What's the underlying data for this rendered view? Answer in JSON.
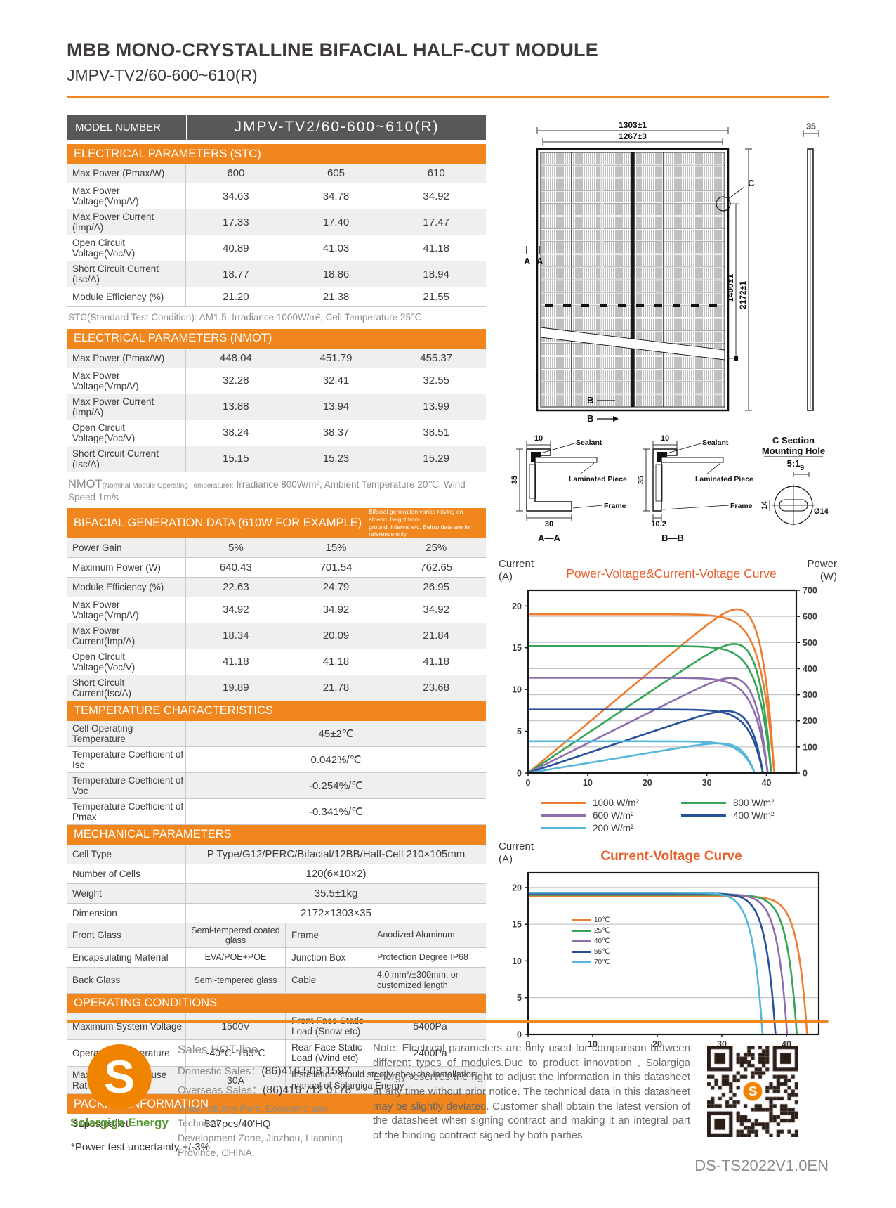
{
  "colors": {
    "accent_orange": "#F0861D",
    "model_bar_gray": "#595757",
    "chart_title_orange": "#E8602C",
    "logo_orange": "#F08300",
    "logo_green": "#569A31"
  },
  "header": {
    "title_line1": "MBB MONO-CRYSTALLINE BIFACIAL HALF-CUT MODULE",
    "title_line2": "JMPV-TV2/60-600~610(R)"
  },
  "model": {
    "label": "MODEL NUMBER",
    "value": "JMPV-TV2/60-600~610(R)"
  },
  "stc": {
    "title": "ELECTRICAL PARAMETERS  (STC)",
    "rows": [
      {
        "label": "Max Power (Pmax/W)",
        "values": [
          "600",
          "605",
          "610"
        ]
      },
      {
        "label": "Max Power Voltage(Vmp/V)",
        "values": [
          "34.63",
          "34.78",
          "34.92"
        ]
      },
      {
        "label": "Max Power Current (Imp/A)",
        "values": [
          "17.33",
          "17.40",
          "17.47"
        ]
      },
      {
        "label": "Open Circuit Voltage(Voc/V)",
        "values": [
          "40.89",
          "41.03",
          "41.18"
        ]
      },
      {
        "label": "Short Circuit Current (Isc/A)",
        "values": [
          "18.77",
          "18.86",
          "18.94"
        ]
      },
      {
        "label": "Module Efficiency (%)",
        "values": [
          "21.20",
          "21.38",
          "21.55"
        ]
      }
    ],
    "footnote": "STC(Standard Test Condition): AM1.5, Irradiance 1000W/m², Cell Temperature 25℃"
  },
  "nmot": {
    "title": "ELECTRICAL PARAMETERS  (NMOT)",
    "rows": [
      {
        "label": "Max Power (Pmax/W)",
        "values": [
          "448.04",
          "451.79",
          "455.37"
        ]
      },
      {
        "label": "Max Power Voltage(Vmp/V)",
        "values": [
          "32.28",
          "32.41",
          "32.55"
        ]
      },
      {
        "label": "Max Power Current (Imp/A)",
        "values": [
          "13.88",
          "13.94",
          "13.99"
        ]
      },
      {
        "label": "Open Circuit Voltage(Voc/V)",
        "values": [
          "38.24",
          "38.37",
          "38.51"
        ]
      },
      {
        "label": "Short Circuit Current (Isc/A)",
        "values": [
          "15.15",
          "15.23",
          "15.29"
        ]
      }
    ],
    "footnote_big": "NMOT",
    "footnote_small": "(Nominal Module Operating Temperature):",
    "footnote_rest": " Irradiance 800W/m², Ambient Temperature 20℃, Wind Speed 1m/s"
  },
  "bifacial": {
    "title": "BIFACIAL GENERATION DATA (610W FOR EXAMPLE)",
    "note1": "Bifacial generation varies relying on albedo, height from",
    "note2": "ground, interval etc. Below data are for reference only.",
    "rows": [
      {
        "label": "Power Gain",
        "values": [
          "5%",
          "15%",
          "25%"
        ]
      },
      {
        "label": "Maximum Power (W)",
        "values": [
          "640.43",
          "701.54",
          "762.65"
        ]
      },
      {
        "label": "Module Efficiency (%)",
        "values": [
          "22.63",
          "24.79",
          "26.95"
        ]
      },
      {
        "label": "Max Power Voltage(Vmp/V)",
        "values": [
          "34.92",
          "34.92",
          "34.92"
        ]
      },
      {
        "label": "Max Power Current(Imp/A)",
        "values": [
          "18.34",
          "20.09",
          "21.84"
        ]
      },
      {
        "label": "Open Circuit Voltage(Voc/V)",
        "values": [
          "41.18",
          "41.18",
          "41.18"
        ]
      },
      {
        "label": "Short Circuit Current(Isc/A)",
        "values": [
          "19.89",
          "21.78",
          "23.68"
        ]
      }
    ]
  },
  "temperature": {
    "title": "TEMPERATURE CHARACTERISTICS",
    "rows": [
      {
        "label": "Cell Operating Temperature",
        "values": [
          "45±2℃"
        ]
      },
      {
        "label": "Temperature Coefficient of Isc",
        "values": [
          "0.042%/℃"
        ]
      },
      {
        "label": "Temperature Coefficient of Voc",
        "values": [
          "-0.254%/℃"
        ]
      },
      {
        "label": "Temperature Coefficient of Pmax",
        "values": [
          "-0.341%/℃"
        ]
      }
    ]
  },
  "mechanical": {
    "title": "MECHANICAL PARAMETERS",
    "full_rows": [
      {
        "label": "Cell Type",
        "values": [
          "P Type/G12/PERC/Bifacial/12BB/Half-Cell 210×105mm"
        ]
      },
      {
        "label": "Number of Cells",
        "values": [
          "120(6×10×2)"
        ]
      },
      {
        "label": "Weight",
        "values": [
          "35.5±1kg"
        ]
      },
      {
        "label": "Dimension",
        "values": [
          "2172×1303×35"
        ]
      }
    ],
    "split_rows": [
      {
        "label1": "Front Glass",
        "value1": "Semi-tempered coated glass",
        "label2": "Frame",
        "value2": "Anodized Aluminum"
      },
      {
        "label1": "Encapsulating Material",
        "value1": "EVA/POE+POE",
        "label2": "Junction Box",
        "value2": "Protection Degree IP68"
      },
      {
        "label1": "Back Glass",
        "value1": "Semi-tempered glass",
        "label2": "Cable",
        "value2": "4.0 mm²/±300mm; or customized length"
      }
    ]
  },
  "operating": {
    "title": "OPERATING CONDITIONS",
    "rows": [
      {
        "label": "Maximum System Voltage",
        "value": "1500V",
        "label2": "Front Face Static Load (Snow etc)",
        "value2": "5400Pa"
      },
      {
        "label": "Operating Temperature",
        "value": "-40℃~+85℃",
        "label2": "Rear Face Static Load (Wind etc)",
        "value2": "2400Pa"
      },
      {
        "label": "Maximum Series Fuse Rating",
        "value": "30A",
        "note": "Installation should strictly obey the installation manual of Solargiga Energy"
      }
    ]
  },
  "packing": {
    "title": "PACKING INFORMATION",
    "pallet": "31pcs/pallet",
    "container": "527pcs/40'HQ",
    "footnote": "*Power test uncertainty  +/-3%"
  },
  "diagram": {
    "dim_width_outer": "1303±1",
    "dim_width_inner": "1267±3",
    "dim_thickness": "35",
    "dim_height_outer": "2172±1",
    "dim_height_inner": "1400±1",
    "label_a": "A",
    "label_b": "B",
    "label_c": "C",
    "sections": {
      "aa": {
        "caption": "A—A",
        "dim_top": "10",
        "dim_side": "35",
        "dim_bottom": "30",
        "labels": [
          "Sealant",
          "Laminated Piece",
          "Frame"
        ]
      },
      "bb": {
        "caption": "B—B",
        "dim_top": "10",
        "dim_side": "35",
        "dim_bottom": "10.2",
        "labels": [
          "Sealant",
          "Laminated Piece",
          "Frame"
        ]
      },
      "c": {
        "title": "C Section",
        "subtitle": "Mounting Hole",
        "scale": "5:1",
        "dim_width": "9",
        "dim_height": "14",
        "dim_diameter": "Ø14"
      }
    }
  },
  "chart_data": [
    {
      "type": "line",
      "title": "Power-Voltage&Current-Voltage Curve",
      "left_axis_title": "Current",
      "left_axis_unit": "(A)",
      "right_axis_title": "Power",
      "right_axis_unit": "(W)",
      "x_max": 45,
      "left_max": 21.875,
      "right_max": 700,
      "x_ticks": [
        0,
        10,
        20,
        30,
        40
      ],
      "left_ticks": [
        0,
        5,
        10,
        15,
        20
      ],
      "right_ticks": [
        0,
        100,
        200,
        300,
        400,
        500,
        600,
        700
      ],
      "grid": true,
      "legend_position": "bottom",
      "series": [
        {
          "name": "1000 W/m²",
          "color": "#ED7D31",
          "isc": 19.0,
          "voc": 41.3
        },
        {
          "name": "800 W/m²",
          "color": "#35A457",
          "isc": 15.2,
          "voc": 40.8
        },
        {
          "name": "600 W/m²",
          "color": "#8F6EAE",
          "isc": 11.4,
          "voc": 40.2
        },
        {
          "name": "400 W/m²",
          "color": "#28519C",
          "isc": 7.6,
          "voc": 39.4
        },
        {
          "name": "200 W/m²",
          "color": "#56B7DA",
          "isc": 3.8,
          "voc": 38.0
        }
      ]
    },
    {
      "type": "line",
      "title": "Current-Voltage Curve",
      "left_axis_title": "Current",
      "left_axis_unit": "(A)",
      "x_max": 45,
      "left_max": 22,
      "x_ticks": [
        0,
        10,
        20,
        30,
        40
      ],
      "left_ticks": [
        0,
        5,
        10,
        15,
        20
      ],
      "grid": true,
      "legend_position": "inside-left",
      "series": [
        {
          "name": "10℃",
          "color": "#ED7D31",
          "isc": 18.8,
          "voc": 43.2
        },
        {
          "name": "25℃",
          "color": "#35A457",
          "isc": 19.0,
          "voc": 41.6
        },
        {
          "name": "40℃",
          "color": "#8F6EAE",
          "isc": 19.1,
          "voc": 40.1
        },
        {
          "name": "55℃",
          "color": "#28519C",
          "isc": 19.2,
          "voc": 38.3
        },
        {
          "name": "70℃",
          "color": "#56B7DA",
          "isc": 19.3,
          "voc": 36.3
        }
      ]
    }
  ],
  "footer": {
    "sales_title": "Sales HOT-line",
    "domestic_label": "Domestic Sales：",
    "domestic_number": "(86)416 508 1597",
    "overseas_label": "Overseas Sales：",
    "overseas_number": "(86)416 712 0178",
    "address": "Xihai Industry Park, Economic and Technical\nDevelopment Zone, Jinzhou, Liaoning\nProvince, CHINA.",
    "note": "Note:  Electrical parameters are only used for comparison between different types of modules.Due to product innovation , Solargiga Energy reserves the right to adjust the information in this datasheet at any time without prior notice. The technical data in this datasheet may be slightly deviated. Customer shall obtain the latest version of the datasheet when signing contract and making it an integral part of the binding contract signed by both parties.",
    "logo_letter": "S",
    "logo_name": "Solargiga Energy",
    "doc_number": "DS-TS2022V1.0EN"
  }
}
